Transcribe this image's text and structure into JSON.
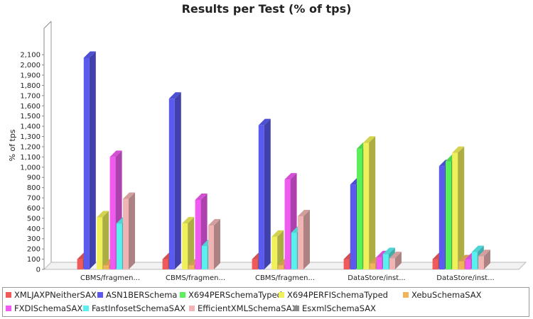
{
  "chart_data": {
    "type": "bar",
    "title": "Results per Test (% of tps)",
    "xlabel": "",
    "ylabel": "% of tps",
    "ylim": [
      0,
      2200
    ],
    "yticks": [
      0,
      100,
      200,
      300,
      400,
      500,
      600,
      700,
      800,
      900,
      1000,
      1100,
      1200,
      1300,
      1400,
      1500,
      1600,
      1700,
      1800,
      1900,
      2000,
      2100
    ],
    "ytick_labels": [
      "0",
      "100",
      "200",
      "300",
      "400",
      "500",
      "600",
      "700",
      "800",
      "900",
      "1,000",
      "1,100",
      "1,200",
      "1,300",
      "1,400",
      "1,500",
      "1,600",
      "1,700",
      "1,800",
      "1,900",
      "2,000",
      "2,100"
    ],
    "grid": false,
    "legend_position": "bottom",
    "categories": [
      "CBMS/fragmen...",
      "CBMS/fragmen...",
      "CBMS/fragmen...",
      "DataStore/inst...",
      "DataStore/inst..."
    ],
    "series": [
      {
        "name": "XMLJAXPNeitherSAX",
        "color": "#f05a5a",
        "values": [
          100,
          100,
          100,
          100,
          100
        ]
      },
      {
        "name": "ASN1BERSchema",
        "color": "#5a5af0",
        "values": [
          2070,
          1670,
          1410,
          830,
          1010
        ]
      },
      {
        "name": "X694PERSchemaTyped",
        "color": "#5af05a",
        "values": [
          null,
          null,
          null,
          1180,
          1060
        ]
      },
      {
        "name": "X694PERFISchemaTyped",
        "color": "#f0f05a",
        "values": [
          510,
          450,
          320,
          1240,
          1140
        ]
      },
      {
        "name": "XebuSchemaSAX",
        "color": "#f0b45a",
        "values": [
          40,
          40,
          40,
          60,
          80
        ]
      },
      {
        "name": "FXDISchemaSAX",
        "color": "#f05af0",
        "values": [
          1100,
          680,
          880,
          120,
          100
        ]
      },
      {
        "name": "FastInfosetSchemaSAX",
        "color": "#5af0f0",
        "values": [
          450,
          230,
          360,
          150,
          170
        ]
      },
      {
        "name": "EfficientXMLSchemaSAX",
        "color": "#f0b4b4",
        "values": [
          690,
          430,
          520,
          110,
          130
        ]
      },
      {
        "name": "EsxmlSchemaSAX",
        "color": "#8c8c8c",
        "values": [
          null,
          null,
          null,
          null,
          null
        ]
      }
    ]
  }
}
